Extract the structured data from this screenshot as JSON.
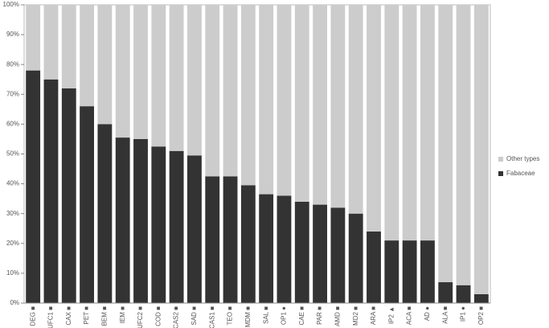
{
  "chart_data": {
    "type": "stacked_bar",
    "categories": [
      "DEG ■",
      "UFC1 ■",
      "CAX ■",
      "PET ■",
      "BEM ■",
      "IEM ■",
      "UFC2 ■",
      "COD ■",
      "CAS2 ■",
      "SAD ■",
      "CAS1 ■",
      "TEO ■",
      "MDM ■",
      "SAL ■",
      "OP1 ●",
      "CAE ■",
      "PAR ■",
      "AMD ■",
      "MD2 ■",
      "ARA ■",
      "IP2 ▲",
      "ACA ■",
      "AD ●",
      "ALA ■",
      "IP1 ●",
      "OP2 ■"
    ],
    "series": [
      {
        "name": "Fabaceae",
        "color": "#333333",
        "values": [
          78,
          75,
          72,
          66,
          60,
          55.5,
          55,
          52.5,
          51,
          49.5,
          42.5,
          42.5,
          39.5,
          36.5,
          36,
          34,
          33,
          32,
          30,
          24,
          21,
          21,
          21,
          7,
          6,
          3
        ]
      },
      {
        "name": "Other types",
        "color": "#cccccc",
        "values": [
          22,
          25,
          28,
          34,
          40,
          44.5,
          45,
          47.5,
          49,
          50.5,
          57.5,
          57.5,
          60.5,
          63.5,
          64,
          66,
          67,
          68,
          70,
          76,
          79,
          79,
          79,
          93,
          94,
          97
        ]
      }
    ],
    "ylim": [
      0,
      100
    ],
    "yticks": [
      {
        "value": 0,
        "label": "0%"
      },
      {
        "value": 10,
        "label": "10%"
      },
      {
        "value": 20,
        "label": "20%"
      },
      {
        "value": 30,
        "label": "30%"
      },
      {
        "value": 40,
        "label": "40%"
      },
      {
        "value": 50,
        "label": "50%"
      },
      {
        "value": 60,
        "label": "60%"
      },
      {
        "value": 70,
        "label": "70%"
      },
      {
        "value": 80,
        "label": "80%"
      },
      {
        "value": 90,
        "label": "90%"
      },
      {
        "value": 100,
        "label": "100%"
      }
    ],
    "legend": "right"
  }
}
